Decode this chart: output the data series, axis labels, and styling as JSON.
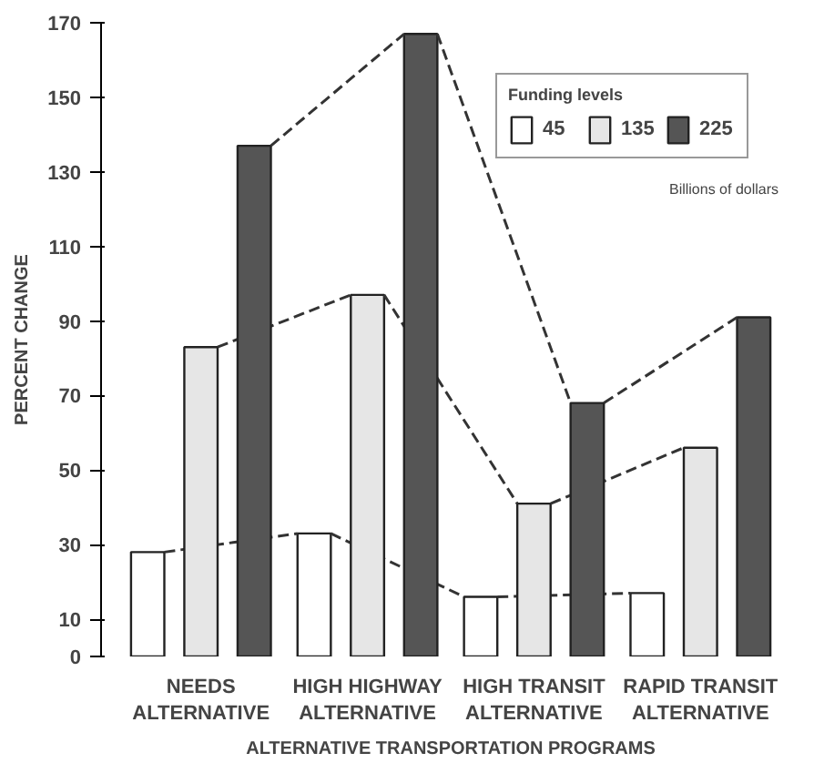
{
  "chart_data": {
    "type": "bar",
    "xlabel": "ALTERNATIVE TRANSPORTATION PROGRAMS",
    "ylabel": "PERCENT CHANGE",
    "legend_title": "Funding levels",
    "annotations": [
      "Billions of dollars"
    ],
    "categories": [
      "NEEDS\nALTERNATIVE",
      "HIGH HIGHWAY\nALTERNATIVE",
      "HIGH TRANSIT\nALTERNATIVE",
      "RAPID TRANSIT\nALTERNATIVE"
    ],
    "series": [
      {
        "name": "45",
        "color": "#ffffff",
        "values": [
          28,
          33,
          16,
          17
        ],
        "line_style": "dashed"
      },
      {
        "name": "135",
        "color": "#e6e6e6",
        "values": [
          83,
          97,
          41,
          56
        ],
        "line_style": "dashed"
      },
      {
        "name": "225",
        "color": "#555555",
        "values": [
          137,
          167,
          68,
          91
        ],
        "line_style": "dashed"
      }
    ],
    "ylim": [
      0,
      170
    ],
    "yticks": [
      0,
      10,
      30,
      50,
      70,
      90,
      110,
      130,
      150,
      170
    ],
    "grid": false,
    "legend": "top right"
  }
}
